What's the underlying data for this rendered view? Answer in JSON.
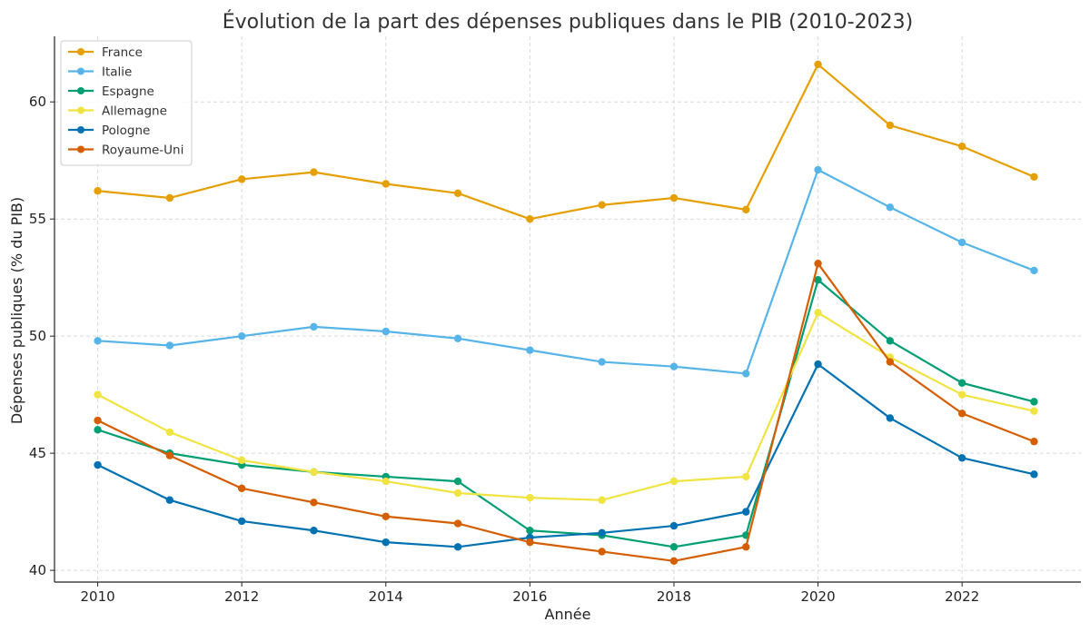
{
  "chart_data": {
    "type": "line",
    "title": "Évolution de la part des dépenses publiques dans le PIB (2010-2023)",
    "xlabel": "Année",
    "ylabel": "Dépenses publiques (% du PIB)",
    "x": [
      2010,
      2011,
      2012,
      2013,
      2014,
      2015,
      2016,
      2017,
      2018,
      2019,
      2020,
      2021,
      2022,
      2023
    ],
    "xlim": [
      2009.4,
      2023.65
    ],
    "ylim": [
      39.5,
      62.8
    ],
    "xticks": [
      2010,
      2012,
      2014,
      2016,
      2018,
      2020,
      2022
    ],
    "yticks": [
      40,
      45,
      50,
      55,
      60
    ],
    "grid": true,
    "legend_position": "top-left",
    "series": [
      {
        "name": "France",
        "color": "#E69F00",
        "values": [
          56.2,
          55.9,
          56.7,
          57.0,
          56.5,
          56.1,
          55.0,
          55.6,
          55.9,
          55.4,
          61.6,
          59.0,
          58.1,
          56.8
        ]
      },
      {
        "name": "Italie",
        "color": "#56B4E9",
        "values": [
          49.8,
          49.6,
          50.0,
          50.4,
          50.2,
          49.9,
          49.4,
          48.9,
          48.7,
          48.4,
          57.1,
          55.5,
          54.0,
          52.8
        ]
      },
      {
        "name": "Espagne",
        "color": "#009E73",
        "values": [
          46.0,
          45.0,
          44.5,
          44.2,
          44.0,
          43.8,
          41.7,
          41.5,
          41.0,
          41.5,
          52.4,
          49.8,
          48.0,
          47.2
        ]
      },
      {
        "name": "Allemagne",
        "color": "#F0E442",
        "values": [
          47.5,
          45.9,
          44.7,
          44.2,
          43.8,
          43.3,
          43.1,
          43.0,
          43.8,
          44.0,
          51.0,
          49.1,
          47.5,
          46.8
        ]
      },
      {
        "name": "Pologne",
        "color": "#0072B2",
        "values": [
          44.5,
          43.0,
          42.1,
          41.7,
          41.2,
          41.0,
          41.4,
          41.6,
          41.9,
          42.5,
          48.8,
          46.5,
          44.8,
          44.1
        ]
      },
      {
        "name": "Royaume-Uni",
        "color": "#D55E00",
        "values": [
          46.4,
          44.9,
          43.5,
          42.9,
          42.3,
          42.0,
          41.2,
          40.8,
          40.4,
          41.0,
          53.1,
          48.9,
          46.7,
          45.5
        ]
      }
    ]
  }
}
